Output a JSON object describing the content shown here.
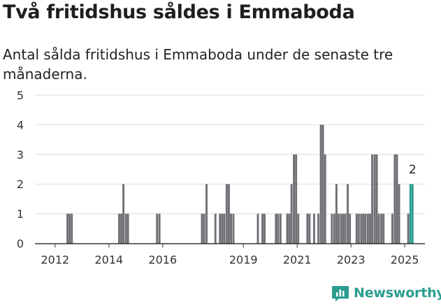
{
  "title": "Två fritidshus såldes i Emmaboda",
  "subtitle": "Antal sålda fritidshus i Emmaboda under de senaste tre månaderna.",
  "brand": {
    "name": "Newsworthy",
    "logo_icon": "newsworthy-chart-icon"
  },
  "colors": {
    "bar": "#6f6f75",
    "highlight": "#2a9d8f",
    "grid": "#dedede",
    "axis": "#333333",
    "brand": "#2a9d8f"
  },
  "chart_data": {
    "type": "bar",
    "title": "Två fritidshus såldes i Emmaboda",
    "subtitle": "Antal sålda fritidshus i Emmaboda under de senaste tre månaderna.",
    "xlabel": "",
    "ylabel": "",
    "ylim": [
      0,
      5
    ],
    "xlim": [
      2011.25,
      2025.75
    ],
    "yticks": [
      0,
      1,
      2,
      3,
      4,
      5
    ],
    "xticks": [
      2012,
      2014,
      2016,
      2019,
      2021,
      2023,
      2025
    ],
    "grid": true,
    "bar_width_years": 0.075,
    "highlight_label": "2",
    "points": [
      {
        "x": 2012.46,
        "y": 1
      },
      {
        "x": 2012.54,
        "y": 1
      },
      {
        "x": 2012.62,
        "y": 1
      },
      {
        "x": 2014.38,
        "y": 1
      },
      {
        "x": 2014.46,
        "y": 1
      },
      {
        "x": 2014.54,
        "y": 2
      },
      {
        "x": 2014.63,
        "y": 1
      },
      {
        "x": 2014.71,
        "y": 1
      },
      {
        "x": 2015.79,
        "y": 1
      },
      {
        "x": 2015.88,
        "y": 1
      },
      {
        "x": 2017.46,
        "y": 1
      },
      {
        "x": 2017.54,
        "y": 1
      },
      {
        "x": 2017.63,
        "y": 2
      },
      {
        "x": 2017.96,
        "y": 1
      },
      {
        "x": 2018.13,
        "y": 1
      },
      {
        "x": 2018.21,
        "y": 1
      },
      {
        "x": 2018.29,
        "y": 1
      },
      {
        "x": 2018.38,
        "y": 2
      },
      {
        "x": 2018.46,
        "y": 2
      },
      {
        "x": 2018.54,
        "y": 1
      },
      {
        "x": 2018.63,
        "y": 1
      },
      {
        "x": 2019.54,
        "y": 1
      },
      {
        "x": 2019.71,
        "y": 1
      },
      {
        "x": 2019.79,
        "y": 1
      },
      {
        "x": 2020.21,
        "y": 1
      },
      {
        "x": 2020.29,
        "y": 1
      },
      {
        "x": 2020.38,
        "y": 1
      },
      {
        "x": 2020.63,
        "y": 1
      },
      {
        "x": 2020.71,
        "y": 1
      },
      {
        "x": 2020.79,
        "y": 2
      },
      {
        "x": 2020.88,
        "y": 3
      },
      {
        "x": 2020.96,
        "y": 3
      },
      {
        "x": 2021.04,
        "y": 1
      },
      {
        "x": 2021.38,
        "y": 1
      },
      {
        "x": 2021.46,
        "y": 1
      },
      {
        "x": 2021.63,
        "y": 1
      },
      {
        "x": 2021.79,
        "y": 1
      },
      {
        "x": 2021.88,
        "y": 4
      },
      {
        "x": 2021.96,
        "y": 4
      },
      {
        "x": 2022.04,
        "y": 3
      },
      {
        "x": 2022.29,
        "y": 1
      },
      {
        "x": 2022.38,
        "y": 1
      },
      {
        "x": 2022.46,
        "y": 2
      },
      {
        "x": 2022.54,
        "y": 1
      },
      {
        "x": 2022.63,
        "y": 1
      },
      {
        "x": 2022.71,
        "y": 1
      },
      {
        "x": 2022.79,
        "y": 1
      },
      {
        "x": 2022.88,
        "y": 2
      },
      {
        "x": 2022.96,
        "y": 1
      },
      {
        "x": 2023.21,
        "y": 1
      },
      {
        "x": 2023.29,
        "y": 1
      },
      {
        "x": 2023.38,
        "y": 1
      },
      {
        "x": 2023.46,
        "y": 1
      },
      {
        "x": 2023.54,
        "y": 1
      },
      {
        "x": 2023.63,
        "y": 1
      },
      {
        "x": 2023.71,
        "y": 1
      },
      {
        "x": 2023.79,
        "y": 3
      },
      {
        "x": 2023.88,
        "y": 3
      },
      {
        "x": 2023.96,
        "y": 3
      },
      {
        "x": 2024.04,
        "y": 1
      },
      {
        "x": 2024.13,
        "y": 1
      },
      {
        "x": 2024.21,
        "y": 1
      },
      {
        "x": 2024.54,
        "y": 1
      },
      {
        "x": 2024.63,
        "y": 3
      },
      {
        "x": 2024.71,
        "y": 3
      },
      {
        "x": 2024.79,
        "y": 2
      },
      {
        "x": 2025.13,
        "y": 1
      },
      {
        "x": 2025.21,
        "y": 2,
        "highlight": true
      },
      {
        "x": 2025.29,
        "y": 2,
        "highlight": true
      }
    ]
  }
}
